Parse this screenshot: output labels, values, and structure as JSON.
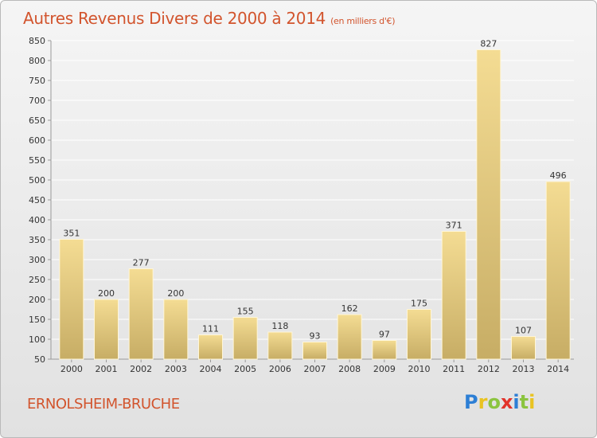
{
  "title": "Autres Revenus Divers de 2000 à 2014",
  "subtitle": "(en milliers d'€)",
  "city": "ERNOLSHEIM-BRUCHE",
  "logo": {
    "letters": [
      "P",
      "r",
      "o",
      "x",
      "i",
      "t",
      "i"
    ],
    "colors": [
      "#2d7fd5",
      "#e9c322",
      "#8bc43f",
      "#e2332b",
      "#2d7fd5",
      "#8bc43f",
      "#e9c322"
    ]
  },
  "colors": {
    "title": "#d2542d",
    "bar_top": "#f4dc93",
    "bar_bottom": "#c7ad65",
    "grid": "#ffffff"
  },
  "chart_data": {
    "type": "bar",
    "categories": [
      "2000",
      "2001",
      "2002",
      "2003",
      "2004",
      "2005",
      "2006",
      "2007",
      "2008",
      "2009",
      "2010",
      "2011",
      "2012",
      "2013",
      "2014"
    ],
    "values": [
      351,
      200,
      277,
      200,
      111,
      155,
      118,
      93,
      162,
      97,
      175,
      371,
      827,
      107,
      496
    ],
    "ylim": [
      50,
      850
    ],
    "yticks": [
      50,
      100,
      150,
      200,
      250,
      300,
      350,
      400,
      450,
      500,
      550,
      600,
      650,
      700,
      750,
      800,
      850
    ],
    "grid": true,
    "data_labels": true
  }
}
